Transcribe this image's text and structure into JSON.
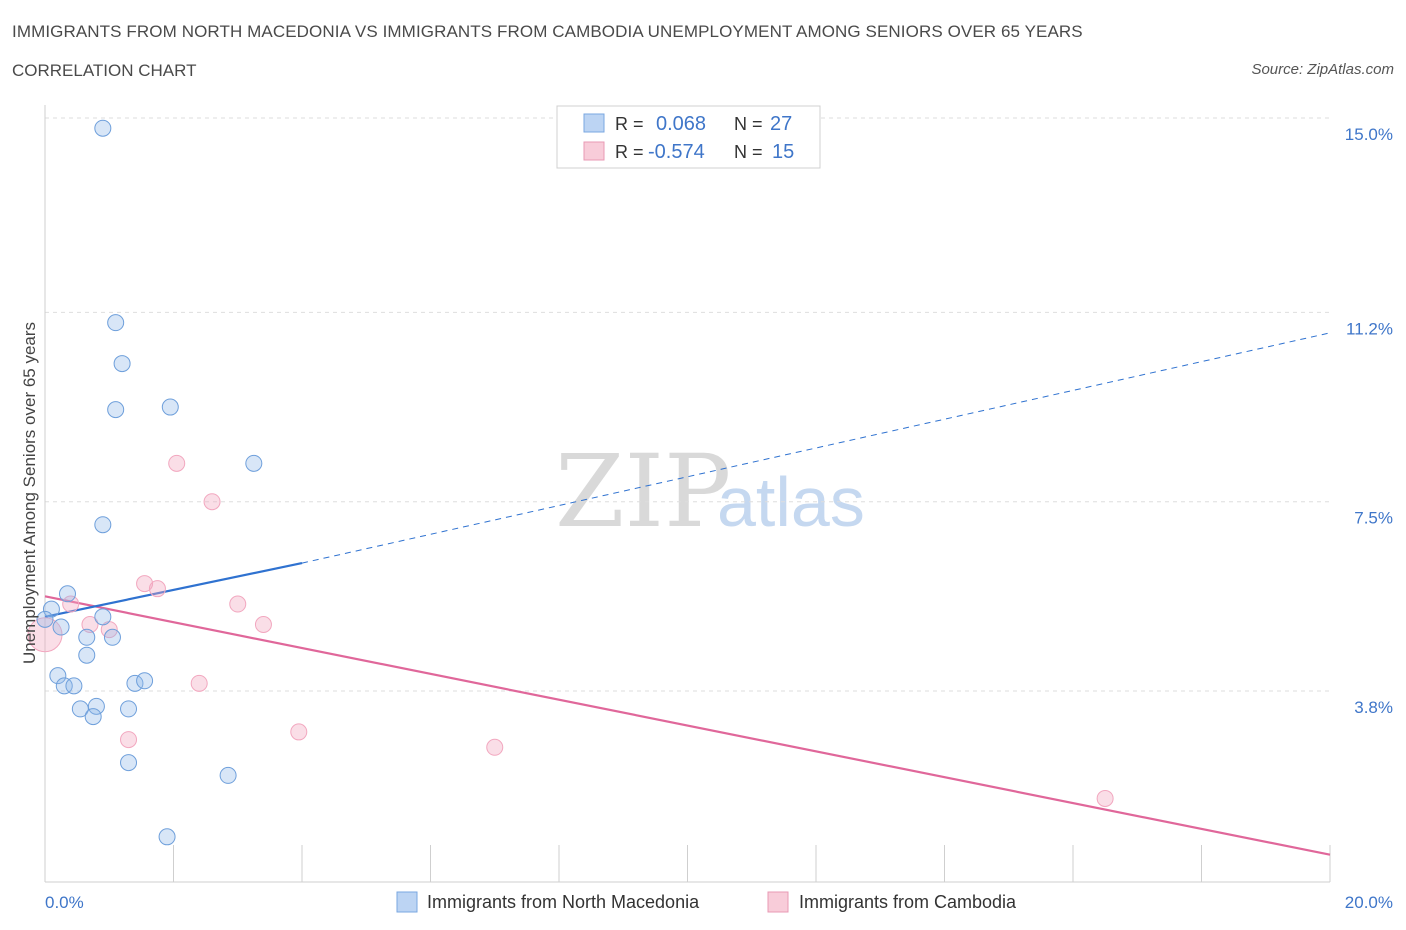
{
  "header": {
    "title": "IMMIGRANTS FROM NORTH MACEDONIA VS IMMIGRANTS FROM CAMBODIA UNEMPLOYMENT AMONG SENIORS OVER 65 YEARS",
    "subtitle": "CORRELATION CHART",
    "source": "Source: ZipAtlas.com"
  },
  "watermark": {
    "zip": "ZIP",
    "atlas": "atlas"
  },
  "legend_top": {
    "rows": [
      {
        "r_label": "R =",
        "r_value": "0.068",
        "n_label": "N =",
        "n_value": "27"
      },
      {
        "r_label": "R =",
        "r_value": "-0.574",
        "n_label": "N =",
        "n_value": "15"
      }
    ]
  },
  "chart_data": {
    "type": "scatter",
    "title": "IMMIGRANTS FROM NORTH MACEDONIA VS IMMIGRANTS FROM CAMBODIA UNEMPLOYMENT AMONG SENIORS OVER 65 YEARS",
    "xlabel": "",
    "ylabel": "Unemployment Among Seniors over 65 years",
    "xlim": [
      0,
      20
    ],
    "ylim": [
      0,
      15
    ],
    "x_tick_labels": [
      "0.0%",
      "20.0%"
    ],
    "y_ticks": [
      3.8,
      7.5,
      11.2,
      15.0
    ],
    "y_tick_labels": [
      "3.8%",
      "7.5%",
      "11.2%",
      "15.0%"
    ],
    "grid": true,
    "legend_position": "bottom",
    "series": [
      {
        "name": "Immigrants from North Macedonia",
        "color": "#8fb8e8",
        "line_color": "#2f72d0",
        "r": 0.068,
        "n": 27,
        "trend": {
          "x0": 0,
          "y0": 5.25,
          "x1": 4.0,
          "y1": 6.3,
          "dashed_to_x": 20,
          "dashed_to_y": 10.8
        },
        "points": [
          [
            0.9,
            14.8
          ],
          [
            1.1,
            11.0
          ],
          [
            1.2,
            10.2
          ],
          [
            1.1,
            9.3
          ],
          [
            1.95,
            9.35
          ],
          [
            3.25,
            8.25
          ],
          [
            0.9,
            7.05
          ],
          [
            0.35,
            5.7
          ],
          [
            0.1,
            5.4
          ],
          [
            0.0,
            5.2
          ],
          [
            0.25,
            5.05
          ],
          [
            0.9,
            5.25
          ],
          [
            0.65,
            4.85
          ],
          [
            1.05,
            4.85
          ],
          [
            0.65,
            4.5
          ],
          [
            0.2,
            4.1
          ],
          [
            0.3,
            3.9
          ],
          [
            0.45,
            3.9
          ],
          [
            1.4,
            3.95
          ],
          [
            1.55,
            4.0
          ],
          [
            0.55,
            3.45
          ],
          [
            0.8,
            3.5
          ],
          [
            0.75,
            3.3
          ],
          [
            1.3,
            3.45
          ],
          [
            1.3,
            2.4
          ],
          [
            2.85,
            2.15
          ],
          [
            1.9,
            0.95
          ]
        ]
      },
      {
        "name": "Immigrants from Cambodia",
        "color": "#f2a7bf",
        "line_color": "#e0679a",
        "r": -0.574,
        "n": 15,
        "trend": {
          "x0": 0,
          "y0": 5.65,
          "x1": 20,
          "y1": 0.6
        },
        "points": [
          [
            0.0,
            4.9
          ],
          [
            0.4,
            5.5
          ],
          [
            0.7,
            5.1
          ],
          [
            1.0,
            5.0
          ],
          [
            1.55,
            5.9
          ],
          [
            1.75,
            5.8
          ],
          [
            2.05,
            8.25
          ],
          [
            2.6,
            7.5
          ],
          [
            3.0,
            5.5
          ],
          [
            3.4,
            5.1
          ],
          [
            2.4,
            3.95
          ],
          [
            1.3,
            2.85
          ],
          [
            3.95,
            3.0
          ],
          [
            7.0,
            2.7
          ],
          [
            16.5,
            1.7
          ]
        ]
      }
    ]
  }
}
